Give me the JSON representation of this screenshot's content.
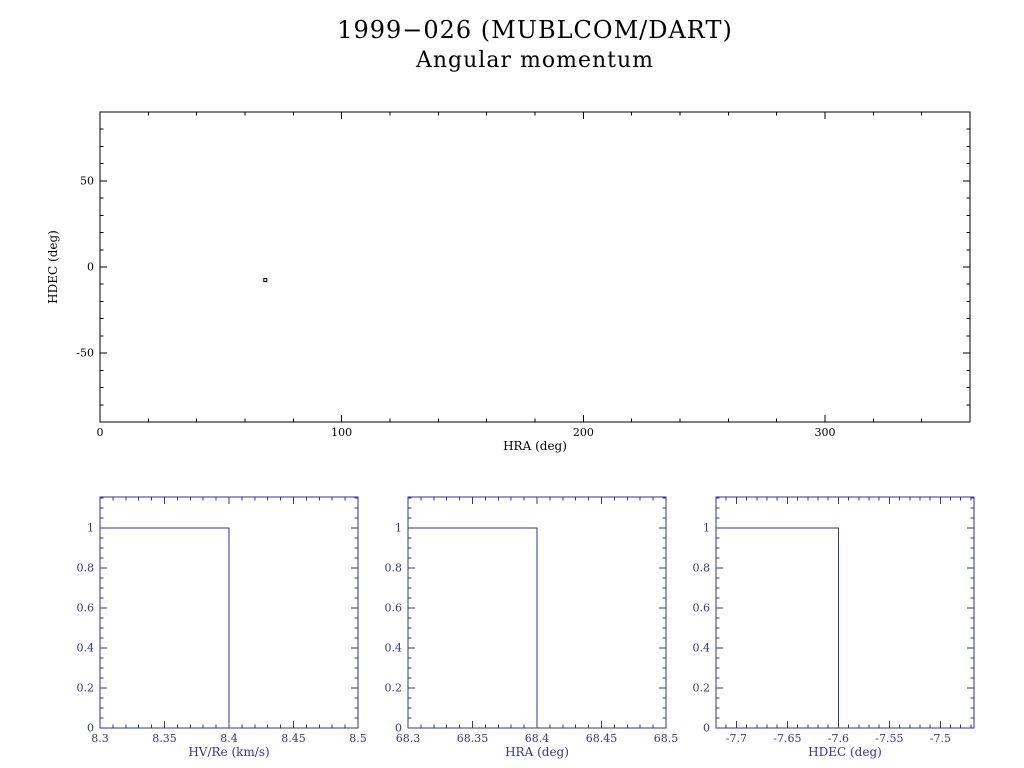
{
  "page": {
    "background": "#ffffff"
  },
  "chart_data": [
    {
      "type": "scatter",
      "title": "1999−026 (MUBLCOM/DART)",
      "subtitle": "Angular momentum",
      "xlabel": "HRA (deg)",
      "ylabel": "HDEC (deg)",
      "xlim": [
        0,
        360
      ],
      "ylim": [
        -90,
        90
      ],
      "xticks": [
        0,
        100,
        200,
        300
      ],
      "xtick_labels": [
        "0",
        "100",
        "200",
        "300"
      ],
      "yticks": [
        -50,
        0,
        50
      ],
      "ytick_labels": [
        "-50",
        "0",
        "50"
      ],
      "xminor_step": 20,
      "yminor_step": 10,
      "grid": false,
      "color": "#000000",
      "points": [
        [
          68.4,
          -7.6
        ]
      ]
    },
    {
      "type": "step",
      "title": "",
      "xlabel": "HV/Re (km/s)",
      "ylabel": "",
      "xlim": [
        8.3,
        8.5
      ],
      "ylim": [
        0,
        1.155
      ],
      "xticks": [
        8.3,
        8.35,
        8.4,
        8.45,
        8.5
      ],
      "xtick_labels": [
        "8.3",
        "8.35",
        "8.4",
        "8.45",
        "8.5"
      ],
      "yticks": [
        0,
        0.2,
        0.4,
        0.6,
        0.8,
        1
      ],
      "ytick_labels": [
        "0",
        "0.2",
        "0.4",
        "0.6",
        "0.8",
        "1"
      ],
      "xminor_step": 0.01,
      "yminor_step": 0.05,
      "grid": false,
      "color": "#333399",
      "line_points": [
        [
          8.3,
          1
        ],
        [
          8.4,
          1
        ],
        [
          8.4,
          0
        ],
        [
          8.5,
          0
        ]
      ]
    },
    {
      "type": "step",
      "title": "",
      "xlabel": "HRA (deg)",
      "ylabel": "",
      "xlim": [
        68.3,
        68.5
      ],
      "ylim": [
        0,
        1.155
      ],
      "xticks": [
        68.3,
        68.35,
        68.4,
        68.45,
        68.5
      ],
      "xtick_labels": [
        "68.3",
        "68.35",
        "68.4",
        "68.45",
        "68.5"
      ],
      "yticks": [
        0,
        0.2,
        0.4,
        0.6,
        0.8,
        1
      ],
      "ytick_labels": [
        "0",
        "0.2",
        "0.4",
        "0.6",
        "0.8",
        "1"
      ],
      "xminor_step": 0.01,
      "yminor_step": 0.05,
      "grid": false,
      "color": "#333399",
      "line_points": [
        [
          68.3,
          1
        ],
        [
          68.4,
          1
        ],
        [
          68.4,
          0
        ],
        [
          68.5,
          0
        ]
      ]
    },
    {
      "type": "step",
      "title": "",
      "xlabel": "HDEC (deg)",
      "ylabel": "",
      "xlim": [
        -7.72,
        -7.467
      ],
      "ylim": [
        0,
        1.155
      ],
      "xticks": [
        -7.7,
        -7.65,
        -7.6,
        -7.55,
        -7.5
      ],
      "xtick_labels": [
        "-7.7",
        "-7.65",
        "-7.6",
        "-7.55",
        "-7.5"
      ],
      "yticks": [
        0,
        0.2,
        0.4,
        0.6,
        0.8,
        1
      ],
      "ytick_labels": [
        "0",
        "0.2",
        "0.4",
        "0.6",
        "0.8",
        "1"
      ],
      "xminor_step": 0.01,
      "yminor_step": 0.05,
      "grid": false,
      "color": "#333399",
      "line_points": [
        [
          -7.72,
          1
        ],
        [
          -7.6,
          1
        ],
        [
          -7.6,
          0
        ],
        [
          -7.467,
          0
        ]
      ]
    }
  ]
}
